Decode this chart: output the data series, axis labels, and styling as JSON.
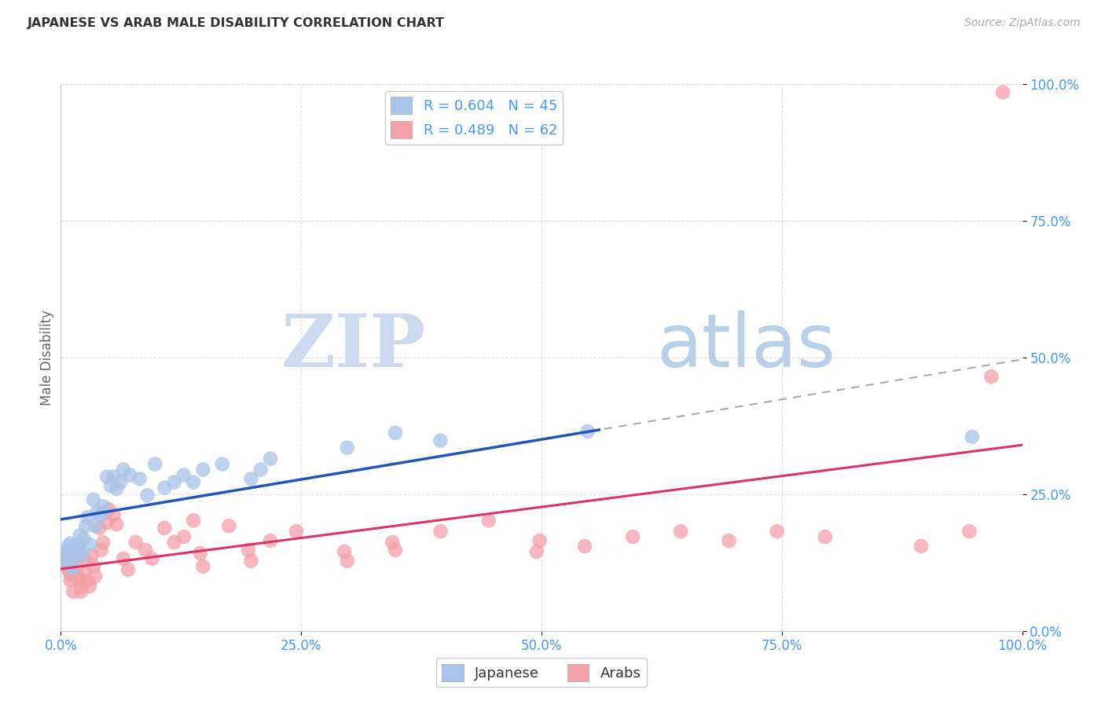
{
  "title": "JAPANESE VS ARAB MALE DISABILITY CORRELATION CHART",
  "source": "Source: ZipAtlas.com",
  "ylabel": "Male Disability",
  "xlim": [
    0,
    1
  ],
  "ylim": [
    0,
    1
  ],
  "xticks": [
    0.0,
    0.25,
    0.5,
    0.75,
    1.0
  ],
  "yticks": [
    0.0,
    0.25,
    0.5,
    0.75,
    1.0
  ],
  "xticklabels": [
    "0.0%",
    "25.0%",
    "50.0%",
    "75.0%",
    "100.0%"
  ],
  "yticklabels": [
    "0.0%",
    "25.0%",
    "50.0%",
    "75.0%",
    "100.0%"
  ],
  "legend_r1": "R = 0.604",
  "legend_n1": "N = 45",
  "legend_r2": "R = 0.489",
  "legend_n2": "N = 62",
  "japanese_color": "#a8c4e8",
  "arab_color": "#f4a0a8",
  "reg_japanese_color": "#2255bb",
  "reg_arab_color": "#dd3366",
  "watermark_zip": "ZIP",
  "watermark_atlas": "atlas",
  "watermark_color_zip": "#ccdaf0",
  "watermark_color_atlas": "#b8d0e8",
  "background_color": "#ffffff",
  "grid_color": "#e0e0e0",
  "title_color": "#333333",
  "axis_label_color": "#666666",
  "tick_color_blue": "#4499ff",
  "source_color": "#aaaaaa",
  "japanese_points": [
    [
      0.004,
      0.13
    ],
    [
      0.006,
      0.145
    ],
    [
      0.008,
      0.155
    ],
    [
      0.01,
      0.16
    ],
    [
      0.01,
      0.125
    ],
    [
      0.012,
      0.115
    ],
    [
      0.014,
      0.14
    ],
    [
      0.016,
      0.15
    ],
    [
      0.018,
      0.158
    ],
    [
      0.02,
      0.148
    ],
    [
      0.02,
      0.175
    ],
    [
      0.022,
      0.138
    ],
    [
      0.024,
      0.168
    ],
    [
      0.026,
      0.192
    ],
    [
      0.028,
      0.208
    ],
    [
      0.03,
      0.158
    ],
    [
      0.034,
      0.24
    ],
    [
      0.036,
      0.192
    ],
    [
      0.038,
      0.218
    ],
    [
      0.042,
      0.212
    ],
    [
      0.044,
      0.228
    ],
    [
      0.048,
      0.282
    ],
    [
      0.052,
      0.265
    ],
    [
      0.055,
      0.282
    ],
    [
      0.058,
      0.26
    ],
    [
      0.062,
      0.272
    ],
    [
      0.065,
      0.295
    ],
    [
      0.072,
      0.285
    ],
    [
      0.082,
      0.278
    ],
    [
      0.09,
      0.248
    ],
    [
      0.098,
      0.305
    ],
    [
      0.108,
      0.262
    ],
    [
      0.118,
      0.272
    ],
    [
      0.128,
      0.285
    ],
    [
      0.138,
      0.272
    ],
    [
      0.148,
      0.295
    ],
    [
      0.168,
      0.305
    ],
    [
      0.198,
      0.278
    ],
    [
      0.208,
      0.295
    ],
    [
      0.218,
      0.315
    ],
    [
      0.298,
      0.335
    ],
    [
      0.348,
      0.362
    ],
    [
      0.395,
      0.348
    ],
    [
      0.548,
      0.365
    ],
    [
      0.948,
      0.355
    ]
  ],
  "arab_points": [
    [
      0.002,
      0.12
    ],
    [
      0.004,
      0.138
    ],
    [
      0.007,
      0.128
    ],
    [
      0.009,
      0.108
    ],
    [
      0.01,
      0.092
    ],
    [
      0.011,
      0.102
    ],
    [
      0.012,
      0.142
    ],
    [
      0.013,
      0.072
    ],
    [
      0.016,
      0.118
    ],
    [
      0.018,
      0.098
    ],
    [
      0.019,
      0.138
    ],
    [
      0.02,
      0.092
    ],
    [
      0.021,
      0.072
    ],
    [
      0.022,
      0.082
    ],
    [
      0.025,
      0.108
    ],
    [
      0.026,
      0.128
    ],
    [
      0.028,
      0.092
    ],
    [
      0.03,
      0.082
    ],
    [
      0.032,
      0.138
    ],
    [
      0.034,
      0.118
    ],
    [
      0.036,
      0.1
    ],
    [
      0.04,
      0.188
    ],
    [
      0.042,
      0.148
    ],
    [
      0.044,
      0.162
    ],
    [
      0.048,
      0.198
    ],
    [
      0.05,
      0.222
    ],
    [
      0.055,
      0.212
    ],
    [
      0.058,
      0.195
    ],
    [
      0.065,
      0.132
    ],
    [
      0.07,
      0.112
    ],
    [
      0.078,
      0.162
    ],
    [
      0.088,
      0.148
    ],
    [
      0.095,
      0.132
    ],
    [
      0.108,
      0.188
    ],
    [
      0.118,
      0.162
    ],
    [
      0.128,
      0.172
    ],
    [
      0.138,
      0.202
    ],
    [
      0.145,
      0.142
    ],
    [
      0.148,
      0.118
    ],
    [
      0.175,
      0.192
    ],
    [
      0.195,
      0.148
    ],
    [
      0.198,
      0.128
    ],
    [
      0.218,
      0.165
    ],
    [
      0.245,
      0.182
    ],
    [
      0.295,
      0.145
    ],
    [
      0.298,
      0.128
    ],
    [
      0.345,
      0.162
    ],
    [
      0.348,
      0.148
    ],
    [
      0.395,
      0.182
    ],
    [
      0.445,
      0.202
    ],
    [
      0.495,
      0.145
    ],
    [
      0.498,
      0.165
    ],
    [
      0.545,
      0.155
    ],
    [
      0.595,
      0.172
    ],
    [
      0.645,
      0.182
    ],
    [
      0.695,
      0.165
    ],
    [
      0.745,
      0.182
    ],
    [
      0.795,
      0.172
    ],
    [
      0.895,
      0.155
    ],
    [
      0.945,
      0.182
    ],
    [
      0.968,
      0.465
    ],
    [
      0.98,
      0.985
    ]
  ]
}
